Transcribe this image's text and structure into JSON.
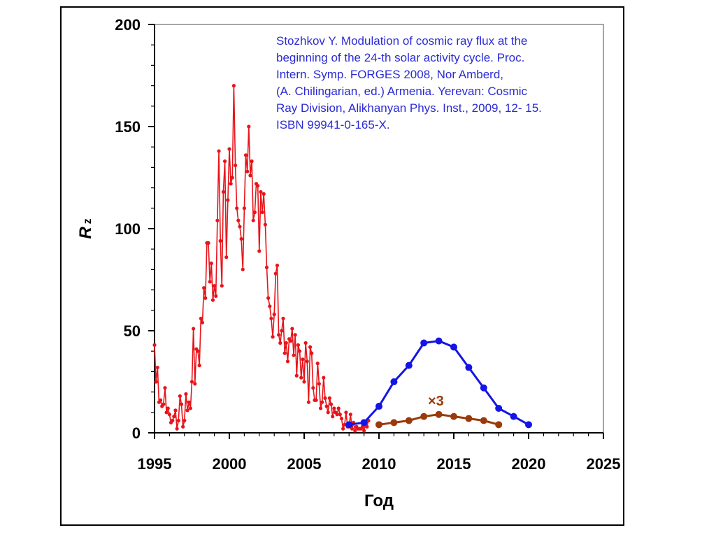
{
  "chart_data": {
    "type": "line",
    "xlabel": "Год",
    "ylabel": {
      "main": "R",
      "sub": "z"
    },
    "xlim": [
      1995,
      2025
    ],
    "ylim": [
      0,
      200
    ],
    "xticks": [
      1995,
      2000,
      2005,
      2010,
      2015,
      2020,
      2025
    ],
    "yticks": [
      0,
      50,
      100,
      150,
      200
    ],
    "grid": false,
    "annotation": [
      "Stozhkov Y. Modulation of cosmic ray flux at the",
      "beginning of the 24-th solar activity cycle. Proc.",
      "Intern. Symp. FORGES 2008, Nor Amberd,",
      "(A. Chilingarian, ed.) Armenia. Yerevan: Cosmic",
      "Ray Division, Alikhanyan Phys. Inst., 2009, 12- 15.",
      "ISBN 99941-0-165-X."
    ],
    "multiplier_label": "×3",
    "series": [
      {
        "color": "#e8141a",
        "style": "line-small-markers",
        "x": [
          1995.0,
          1995.1,
          1995.2,
          1995.3,
          1995.4,
          1995.5,
          1995.6,
          1995.7,
          1995.8,
          1995.9,
          1996.0,
          1996.1,
          1996.2,
          1996.3,
          1996.4,
          1996.5,
          1996.6,
          1996.7,
          1996.8,
          1996.9,
          1997.0,
          1997.1,
          1997.2,
          1997.3,
          1997.4,
          1997.5,
          1997.6,
          1997.7,
          1997.8,
          1997.9,
          1998.0,
          1998.1,
          1998.2,
          1998.3,
          1998.4,
          1998.5,
          1998.6,
          1998.7,
          1998.8,
          1998.9,
          1999.0,
          1999.1,
          1999.2,
          1999.3,
          1999.4,
          1999.5,
          1999.6,
          1999.7,
          1999.8,
          1999.9,
          2000.0,
          2000.1,
          2000.2,
          2000.3,
          2000.4,
          2000.5,
          2000.6,
          2000.7,
          2000.8,
          2000.9,
          2001.0,
          2001.1,
          2001.2,
          2001.3,
          2001.4,
          2001.5,
          2001.6,
          2001.7,
          2001.8,
          2001.9,
          2002.0,
          2002.1,
          2002.2,
          2002.3,
          2002.4,
          2002.5,
          2002.6,
          2002.7,
          2002.8,
          2002.9,
          2003.0,
          2003.1,
          2003.2,
          2003.3,
          2003.4,
          2003.5,
          2003.6,
          2003.7,
          2003.8,
          2003.9,
          2004.0,
          2004.1,
          2004.2,
          2004.3,
          2004.4,
          2004.5,
          2004.6,
          2004.7,
          2004.8,
          2004.9,
          2005.0,
          2005.1,
          2005.2,
          2005.3,
          2005.4,
          2005.5,
          2005.6,
          2005.7,
          2005.8,
          2005.9,
          2006.0,
          2006.1,
          2006.2,
          2006.3,
          2006.4,
          2006.5,
          2006.6,
          2006.7,
          2006.8,
          2006.9,
          2007.0,
          2007.1,
          2007.2,
          2007.3,
          2007.4,
          2007.5,
          2007.6,
          2007.7,
          2007.8,
          2007.9,
          2008.0,
          2008.1,
          2008.2,
          2008.3,
          2008.4,
          2008.5,
          2008.6,
          2008.7,
          2008.8,
          2008.9,
          2009.0,
          2009.1,
          2009.2,
          2009.3
        ],
        "y": [
          43,
          25,
          32,
          15,
          16,
          13,
          14,
          22,
          10,
          12,
          9,
          5,
          6,
          8,
          11,
          2,
          6,
          18,
          14,
          3,
          6,
          19,
          11,
          15,
          12,
          25,
          51,
          24,
          41,
          40,
          33,
          56,
          54,
          71,
          66,
          93,
          93,
          74,
          83,
          65,
          72,
          67,
          104,
          138,
          94,
          72,
          118,
          133,
          86,
          114,
          139,
          122,
          125,
          170,
          131,
          110,
          104,
          101,
          95,
          80,
          110,
          136,
          128,
          150,
          126,
          133,
          104,
          108,
          122,
          121,
          89,
          118,
          108,
          117,
          102,
          81,
          66,
          62,
          56,
          47,
          58,
          78,
          82,
          48,
          44,
          50,
          56,
          39,
          44,
          35,
          46,
          45,
          51,
          38,
          48,
          28,
          43,
          40,
          27,
          36,
          25,
          44,
          35,
          15,
          42,
          39,
          22,
          16,
          16,
          34,
          24,
          12,
          15,
          27,
          17,
          13,
          10,
          17,
          14,
          8,
          12,
          10,
          9,
          12,
          9,
          7,
          2,
          4,
          10,
          3,
          3,
          9,
          2,
          5,
          1,
          3,
          2,
          2,
          2,
          3,
          1,
          4,
          3,
          6
        ]
      },
      {
        "color": "#1414e6",
        "style": "line-markers",
        "x": [
          2008,
          2009,
          2010,
          2011,
          2012,
          2013,
          2014,
          2015,
          2016,
          2017,
          2018,
          2019,
          2020
        ],
        "y": [
          4,
          5,
          13,
          25,
          33,
          44,
          45,
          42,
          32,
          22,
          12,
          8,
          4
        ]
      },
      {
        "color": "#9a3a0a",
        "style": "line-markers",
        "x": [
          2010,
          2011,
          2012,
          2013,
          2014,
          2015,
          2016,
          2017,
          2018
        ],
        "y": [
          4,
          5,
          6,
          8,
          9,
          8,
          7,
          6,
          4
        ]
      }
    ]
  }
}
